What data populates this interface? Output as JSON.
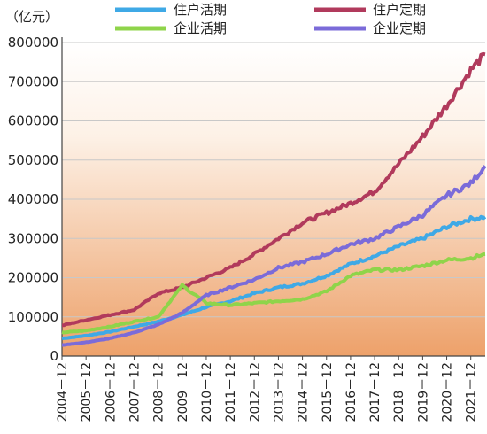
{
  "chart_data": {
    "type": "line",
    "ylabel": "（亿元）",
    "ylim": [
      0,
      800000
    ],
    "yticks": [
      "0",
      "100000",
      "200000",
      "300000",
      "400000",
      "500000",
      "600000",
      "700000",
      "800000"
    ],
    "categories": [
      "2004－12",
      "2005－12",
      "2006－12",
      "2007－12",
      "2008－12",
      "2009－12",
      "2010－12",
      "2011－12",
      "2012－12",
      "2013－12",
      "2014－12",
      "2015－12",
      "2016－12",
      "2017－12",
      "2018－12",
      "2019－12",
      "2020－12",
      "2021－12"
    ],
    "x_end": "2022-06",
    "legend_position": "top",
    "grid": true,
    "series": [
      {
        "name": "住户活期",
        "color": "#3fa9e6",
        "x": [
          2004.9,
          2005.9,
          2006.9,
          2007.9,
          2008.9,
          2009.9,
          2010.9,
          2011.9,
          2012.9,
          2013.9,
          2014.9,
          2015.9,
          2016.9,
          2017.9,
          2018.9,
          2019.9,
          2020.9,
          2021.9,
          2022.5
        ],
        "values": [
          45000,
          52000,
          62000,
          75000,
          88000,
          105000,
          125000,
          140000,
          160000,
          175000,
          185000,
          205000,
          235000,
          255000,
          280000,
          300000,
          330000,
          350000,
          355000
        ]
      },
      {
        "name": "住户定期",
        "color": "#b13a5c",
        "x": [
          2004.9,
          2005.9,
          2006.9,
          2007.9,
          2008.9,
          2009.9,
          2010.9,
          2011.9,
          2012.9,
          2013.9,
          2014.9,
          2015.9,
          2016.9,
          2017.9,
          2018.9,
          2019.9,
          2020.9,
          2021.9,
          2022.5
        ],
        "values": [
          78000,
          92000,
          105000,
          118000,
          160000,
          175000,
          200000,
          225000,
          260000,
          300000,
          340000,
          365000,
          390000,
          420000,
          490000,
          560000,
          640000,
          730000,
          770000
        ]
      },
      {
        "name": "企业活期",
        "color": "#8fd44a",
        "x": [
          2004.9,
          2005.9,
          2006.9,
          2007.9,
          2008.9,
          2009.9,
          2010.9,
          2011.9,
          2012.9,
          2013.9,
          2014.9,
          2015.9,
          2016.9,
          2017.9,
          2018.9,
          2019.9,
          2020.9,
          2021.9,
          2022.5
        ],
        "values": [
          60000,
          65000,
          75000,
          88000,
          100000,
          180000,
          135000,
          130000,
          135000,
          140000,
          145000,
          165000,
          205000,
          220000,
          220000,
          230000,
          245000,
          250000,
          260000
        ]
      },
      {
        "name": "企业定期",
        "color": "#7b6bd9",
        "x": [
          2004.9,
          2005.9,
          2006.9,
          2007.9,
          2008.9,
          2009.9,
          2010.9,
          2011.9,
          2012.9,
          2013.9,
          2014.9,
          2015.9,
          2016.9,
          2017.9,
          2018.9,
          2019.9,
          2020.9,
          2021.9,
          2022.5
        ],
        "values": [
          28000,
          35000,
          45000,
          60000,
          80000,
          110000,
          155000,
          175000,
          195000,
          225000,
          240000,
          260000,
          285000,
          300000,
          330000,
          360000,
          410000,
          440000,
          485000
        ]
      }
    ]
  }
}
